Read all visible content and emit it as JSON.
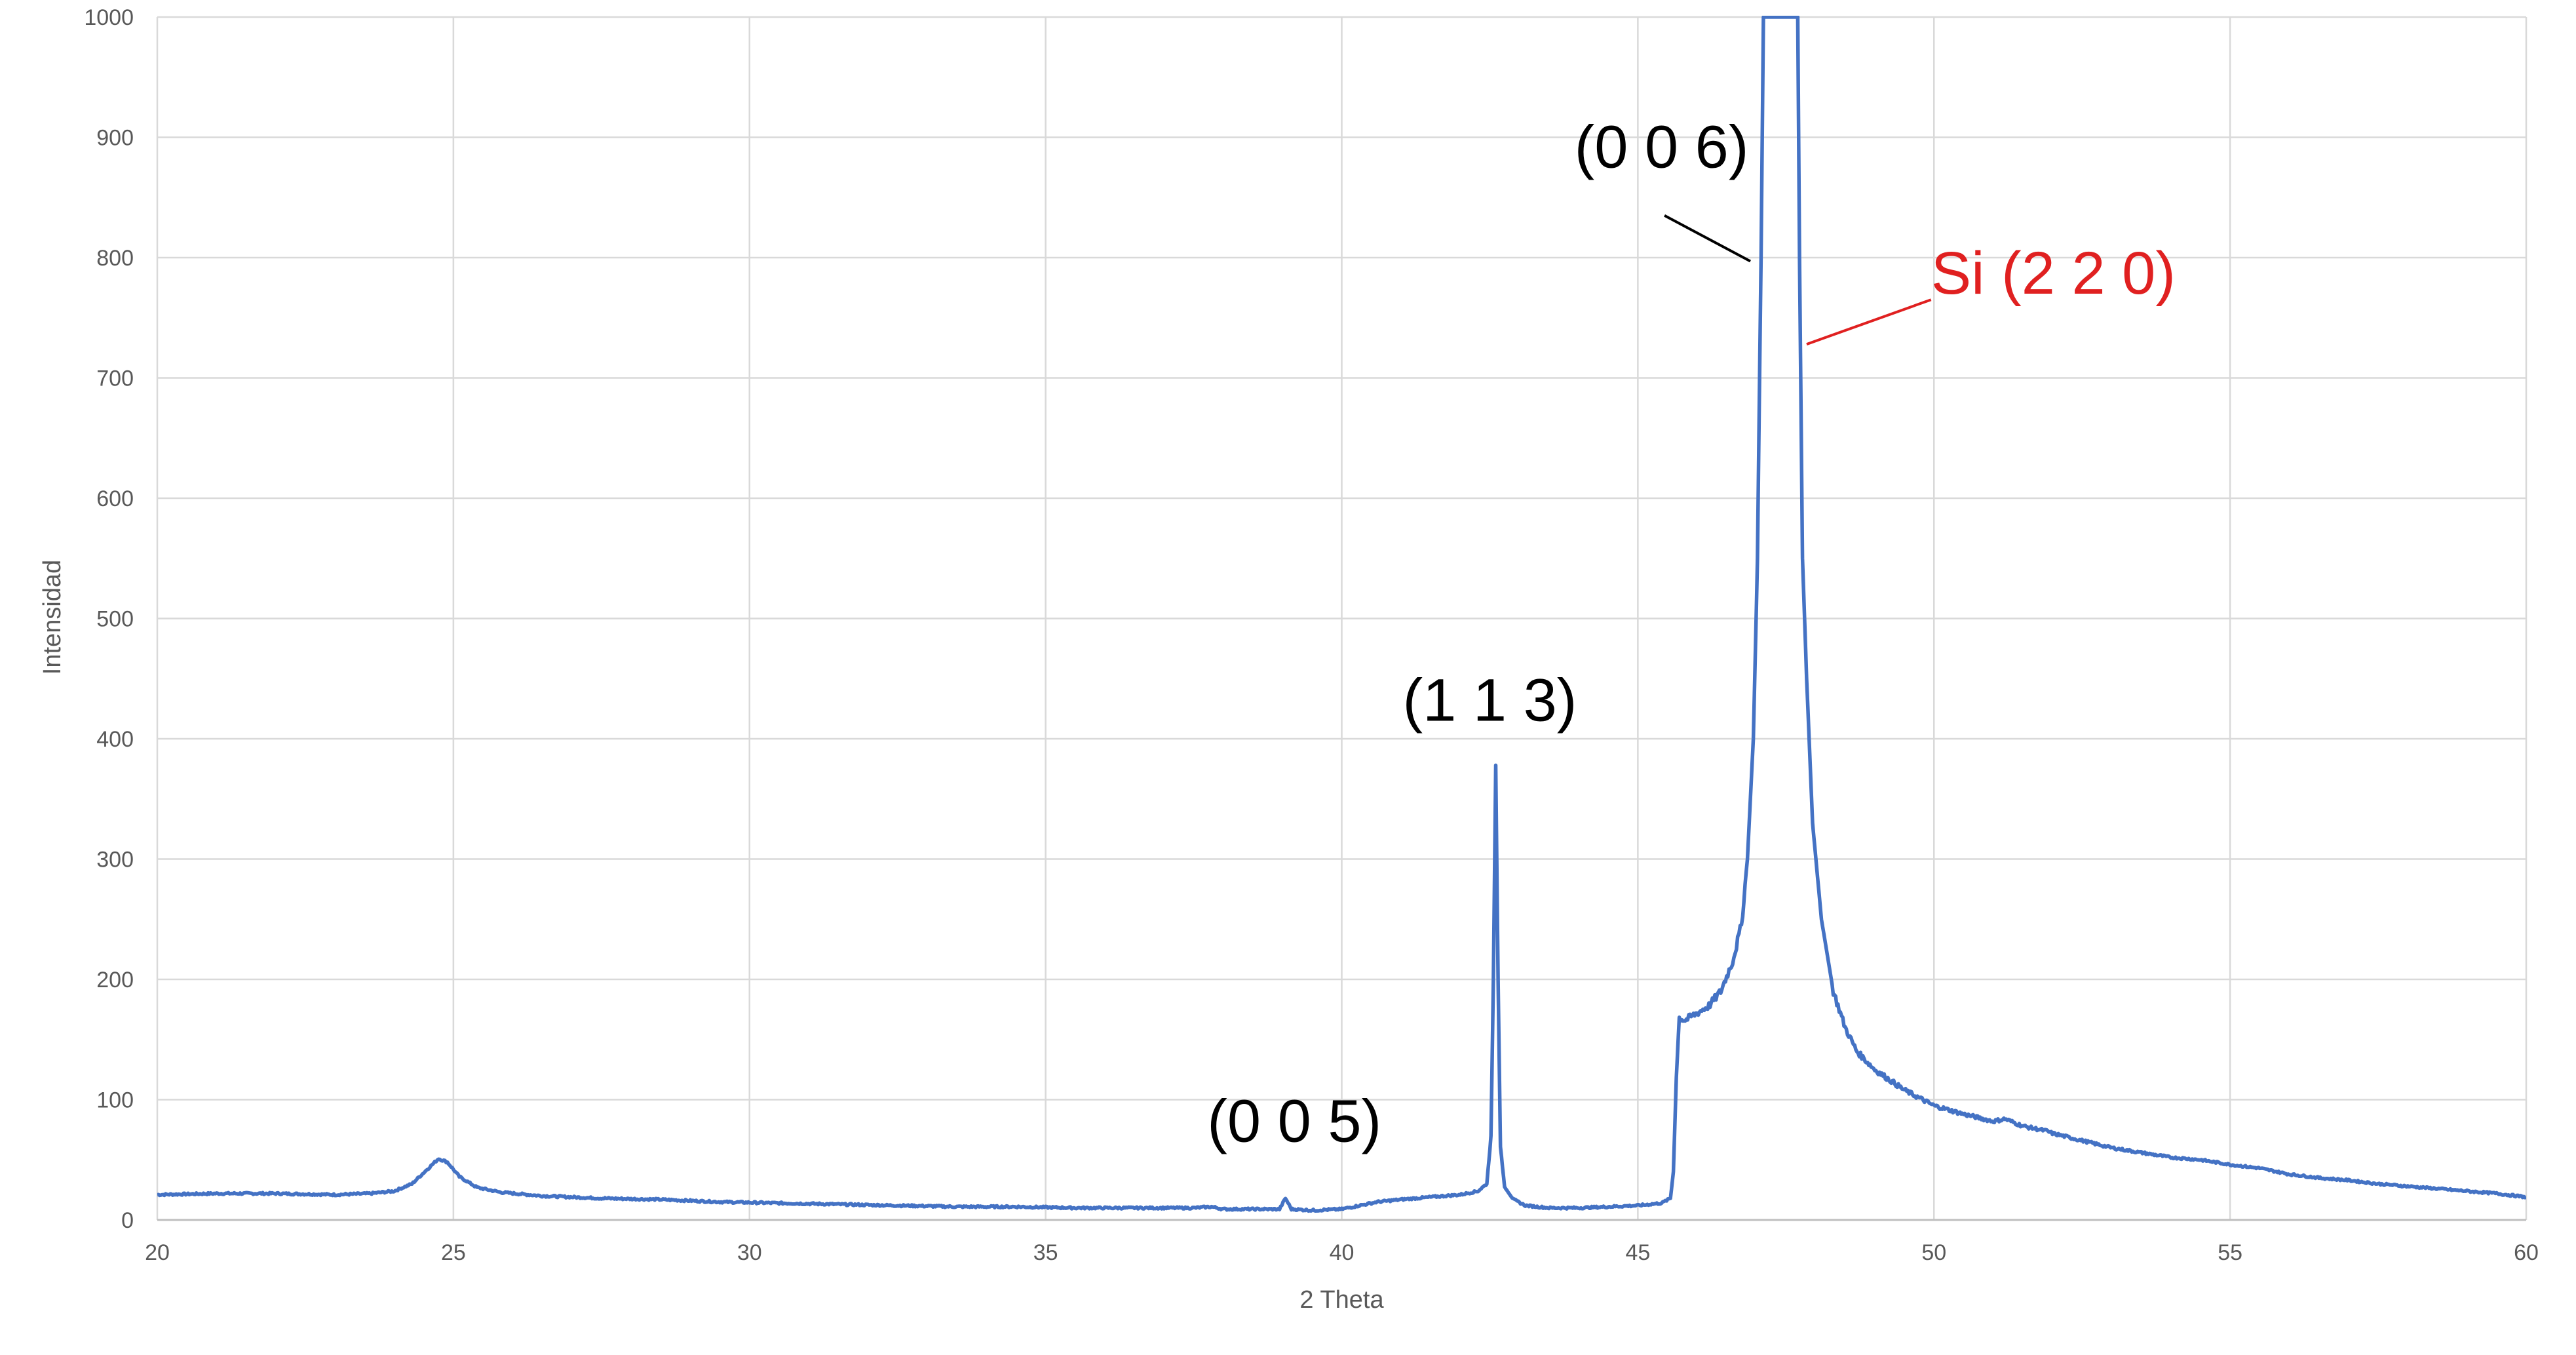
{
  "chart_data": {
    "type": "line",
    "title": "",
    "xlabel": "2 Theta",
    "ylabel": "Intensidad",
    "xlim": [
      20,
      60
    ],
    "ylim": [
      0,
      1000
    ],
    "x_ticks": [
      20,
      25,
      30,
      35,
      40,
      45,
      50,
      55,
      60
    ],
    "y_ticks": [
      0,
      100,
      200,
      300,
      400,
      500,
      600,
      700,
      800,
      900,
      1000
    ],
    "grid": true,
    "legend": "none",
    "series": [
      {
        "color": "#4472c4",
        "points": [
          [
            20.0,
            21
          ],
          [
            21.0,
            22
          ],
          [
            22.0,
            22
          ],
          [
            23.0,
            21
          ],
          [
            23.6,
            22
          ],
          [
            24.0,
            24
          ],
          [
            24.3,
            30
          ],
          [
            24.6,
            44
          ],
          [
            24.75,
            51
          ],
          [
            24.9,
            48
          ],
          [
            25.1,
            36
          ],
          [
            25.4,
            27
          ],
          [
            25.8,
            23
          ],
          [
            26.5,
            20
          ],
          [
            27.5,
            18
          ],
          [
            28.5,
            17
          ],
          [
            29.5,
            15
          ],
          [
            30.5,
            14
          ],
          [
            31.5,
            13
          ],
          [
            32.5,
            12
          ],
          [
            33.5,
            11
          ],
          [
            34.5,
            11
          ],
          [
            35.5,
            10
          ],
          [
            36.5,
            10
          ],
          [
            37.5,
            10
          ],
          [
            37.8,
            11
          ],
          [
            38.0,
            9
          ],
          [
            38.5,
            9
          ],
          [
            38.95,
            9
          ],
          [
            39.05,
            18
          ],
          [
            39.15,
            9
          ],
          [
            39.5,
            8
          ],
          [
            40.0,
            9
          ],
          [
            40.3,
            12
          ],
          [
            40.6,
            15
          ],
          [
            41.0,
            17
          ],
          [
            41.5,
            19
          ],
          [
            42.0,
            21
          ],
          [
            42.3,
            24
          ],
          [
            42.45,
            30
          ],
          [
            42.52,
            70
          ],
          [
            42.56,
            200
          ],
          [
            42.6,
            378
          ],
          [
            42.64,
            200
          ],
          [
            42.68,
            60
          ],
          [
            42.75,
            28
          ],
          [
            42.9,
            17
          ],
          [
            43.1,
            12
          ],
          [
            43.5,
            10
          ],
          [
            44.0,
            10
          ],
          [
            44.5,
            11
          ],
          [
            45.0,
            12
          ],
          [
            45.4,
            14
          ],
          [
            45.55,
            18
          ],
          [
            45.6,
            40
          ],
          [
            45.65,
            120
          ],
          [
            45.7,
            168
          ],
          [
            45.8,
            166
          ],
          [
            46.0,
            172
          ],
          [
            46.2,
            178
          ],
          [
            46.4,
            190
          ],
          [
            46.6,
            215
          ],
          [
            46.75,
            245
          ],
          [
            46.85,
            300
          ],
          [
            46.95,
            400
          ],
          [
            47.02,
            550
          ],
          [
            47.08,
            800
          ],
          [
            47.12,
            1000
          ],
          [
            47.7,
            1000
          ],
          [
            47.73,
            800
          ],
          [
            47.78,
            550
          ],
          [
            47.85,
            450
          ],
          [
            47.95,
            330
          ],
          [
            48.1,
            250
          ],
          [
            48.3,
            190
          ],
          [
            48.5,
            160
          ],
          [
            48.7,
            140
          ],
          [
            49.0,
            125
          ],
          [
            49.5,
            108
          ],
          [
            50.0,
            95
          ],
          [
            50.5,
            88
          ],
          [
            51.0,
            82
          ],
          [
            51.2,
            84
          ],
          [
            51.5,
            78
          ],
          [
            51.9,
            74
          ],
          [
            52.0,
            72
          ],
          [
            52.5,
            66
          ],
          [
            53.0,
            60
          ],
          [
            53.5,
            56
          ],
          [
            54.0,
            52
          ],
          [
            54.5,
            50
          ],
          [
            55.0,
            46
          ],
          [
            55.5,
            43
          ],
          [
            56.0,
            38
          ],
          [
            56.5,
            35
          ],
          [
            57.0,
            33
          ],
          [
            57.5,
            30
          ],
          [
            58.0,
            28
          ],
          [
            58.5,
            26
          ],
          [
            59.0,
            24
          ],
          [
            59.5,
            22
          ],
          [
            60.0,
            19
          ]
        ]
      }
    ],
    "annotations": [
      {
        "text": "(0 0 5)",
        "color": "#000000",
        "x": 39.2,
        "y": 65,
        "leader": null
      },
      {
        "text": "(1 1 3)",
        "color": "#000000",
        "x": 42.5,
        "y": 415,
        "leader": null
      },
      {
        "text": "(0 0 6)",
        "color": "#000000",
        "x": 45.4,
        "y": 875,
        "leader": [
          [
            45.45,
            835
          ],
          [
            46.9,
            797
          ]
        ]
      },
      {
        "text": "Si (2 2 0)",
        "color": "#e02020",
        "x": 49.95,
        "y": 770,
        "leader": [
          [
            49.95,
            765
          ],
          [
            47.85,
            728
          ]
        ]
      }
    ]
  }
}
